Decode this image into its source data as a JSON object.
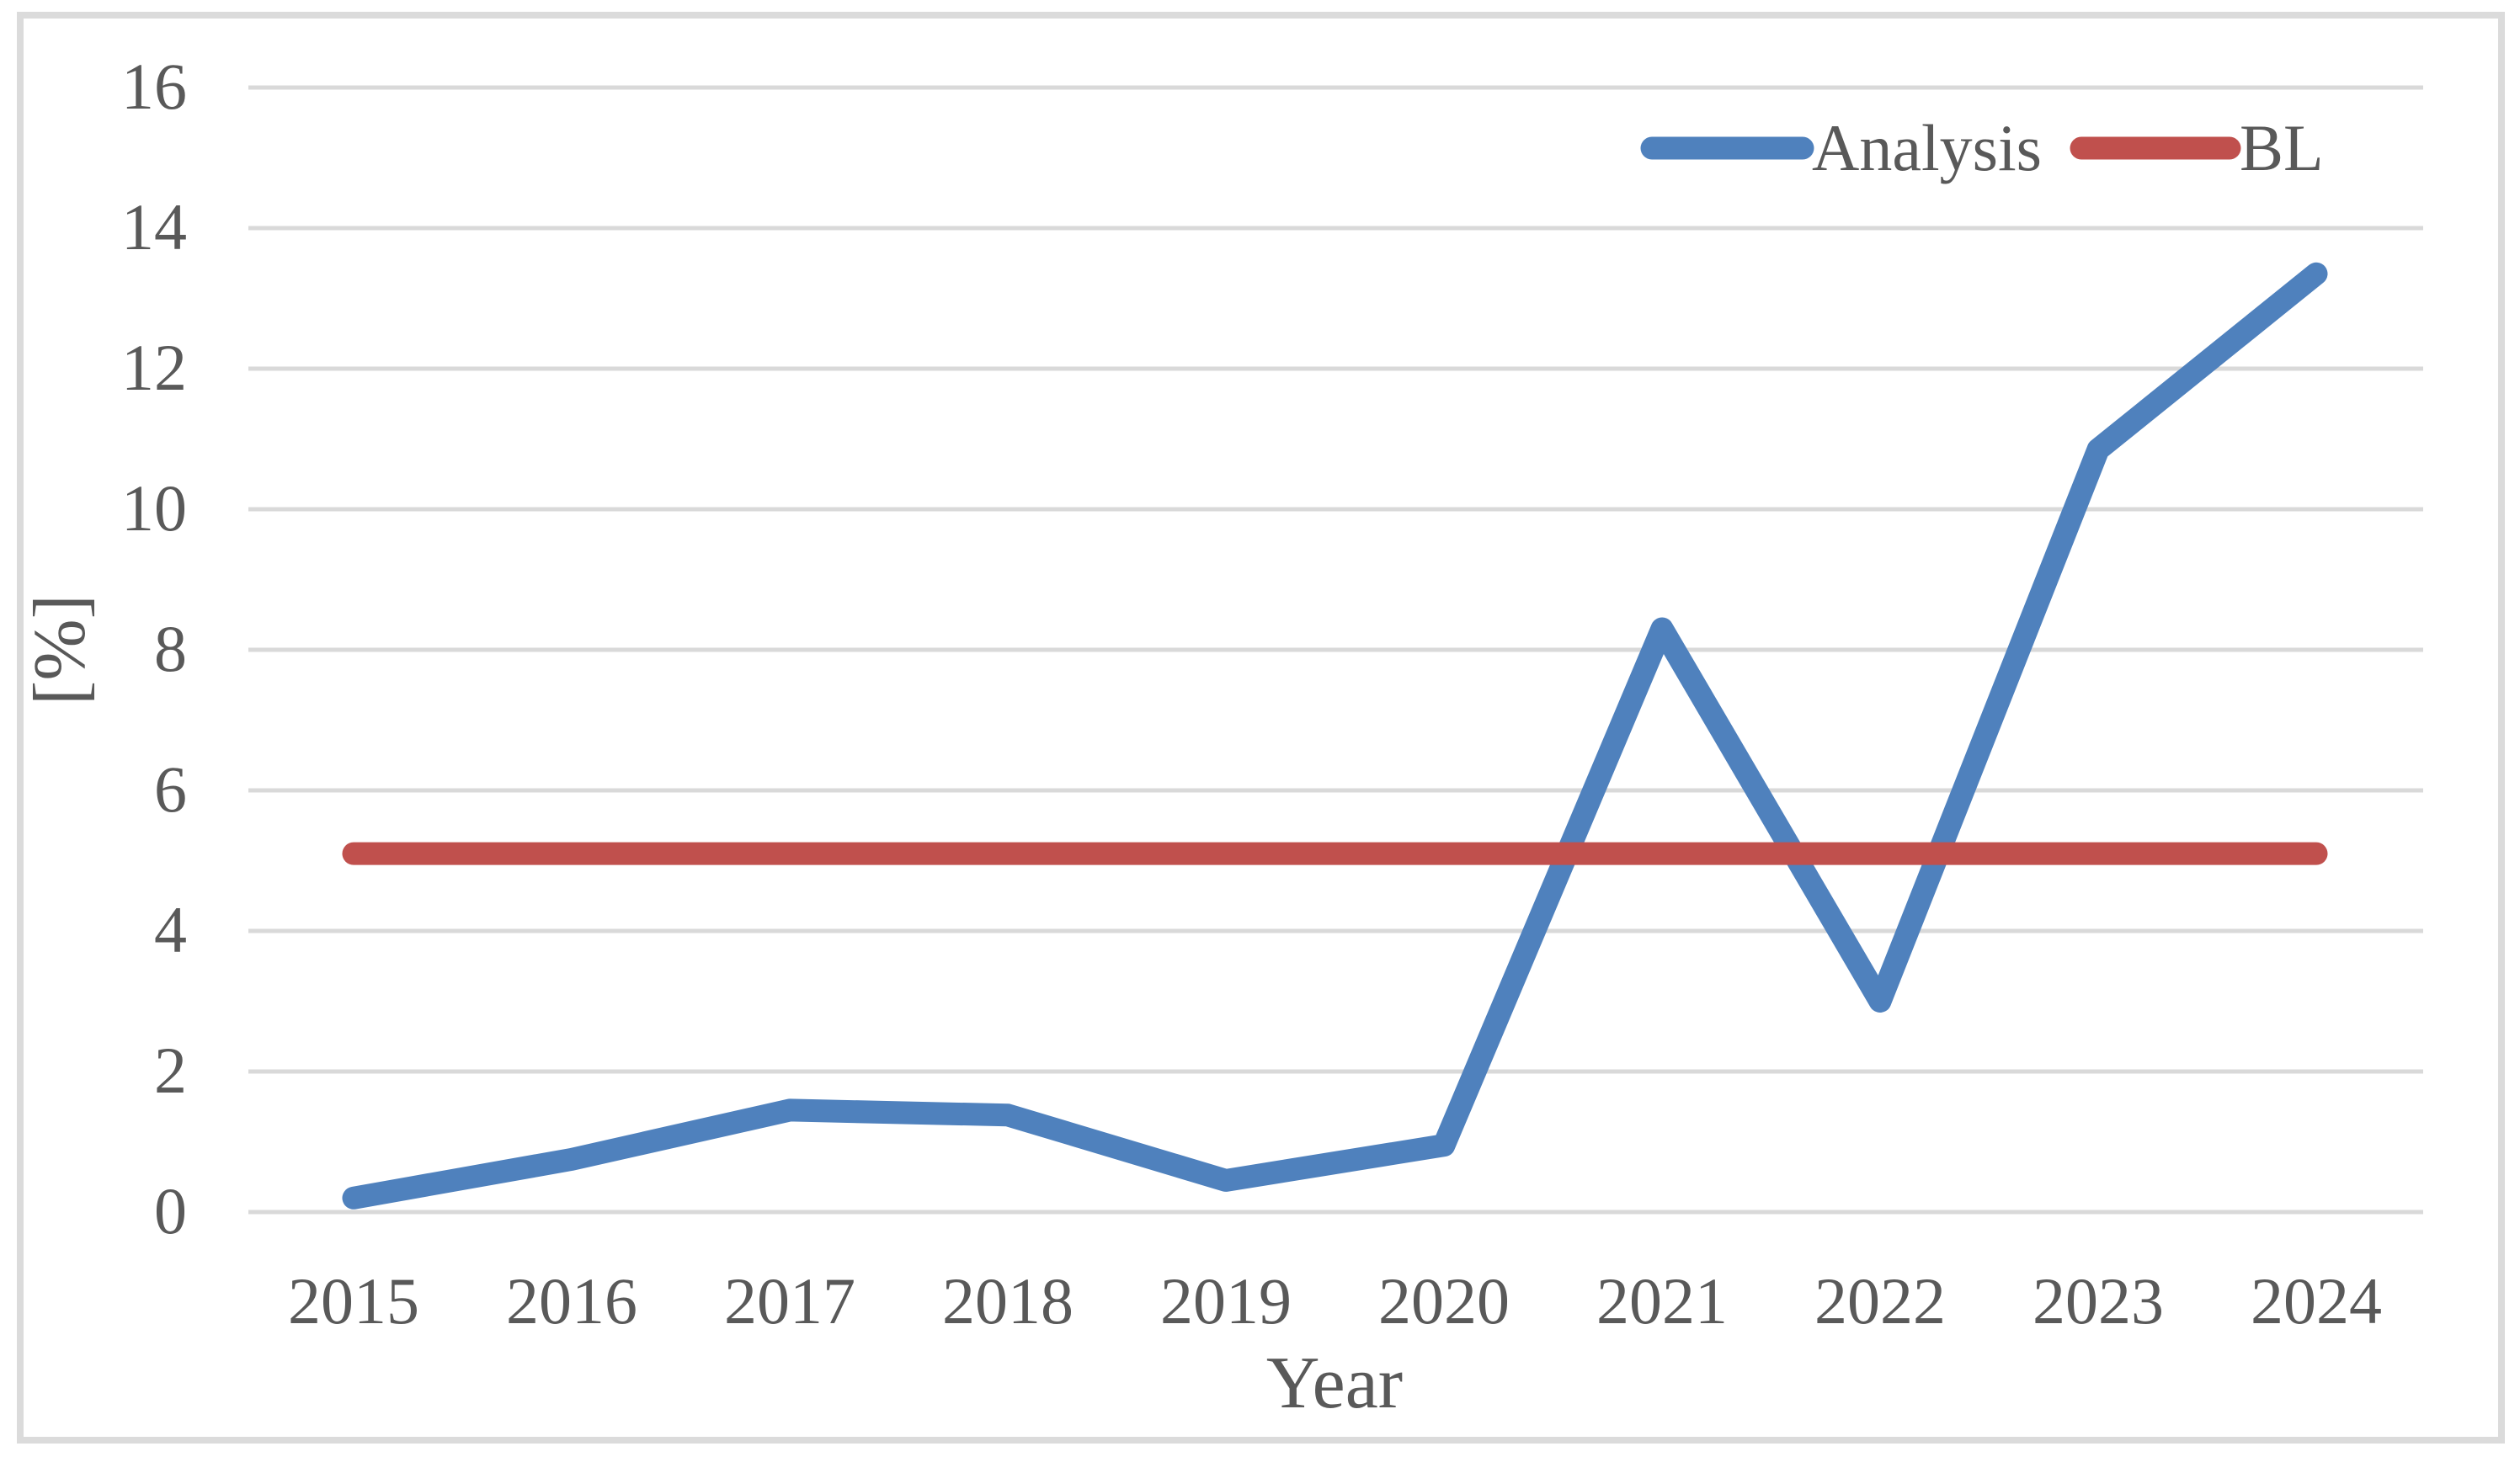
{
  "chart_data": {
    "type": "line",
    "title": "",
    "xlabel": "Year",
    "ylabel": "[%]",
    "categories": [
      "2015",
      "2016",
      "2017",
      "2018",
      "2019",
      "2020",
      "2021",
      "2022",
      "2023",
      "2024"
    ],
    "series": [
      {
        "name": "Analysis",
        "color": "#4F81BD",
        "values": [
          0.2,
          0.75,
          1.45,
          1.38,
          0.45,
          0.95,
          8.3,
          3.0,
          10.85,
          13.35
        ]
      },
      {
        "name": "BL",
        "color": "#C0504D",
        "values": [
          5.1,
          5.1,
          5.1,
          5.1,
          5.1,
          5.1,
          5.1,
          5.1,
          5.1,
          5.1
        ]
      }
    ],
    "ylim": [
      0,
      16
    ],
    "yticks": [
      0,
      2,
      4,
      6,
      8,
      10,
      12,
      14,
      16
    ],
    "grid": "horizontal",
    "legend_position": "top-right",
    "legend_labels": [
      "Analysis",
      "BL"
    ]
  },
  "colors": {
    "grid": "#D9D9D9",
    "frame": "#DBDBDB",
    "text": "#595959",
    "background": "#FFFFFF",
    "analysis_line": "#4F81BD",
    "bl_line": "#C0504D"
  }
}
